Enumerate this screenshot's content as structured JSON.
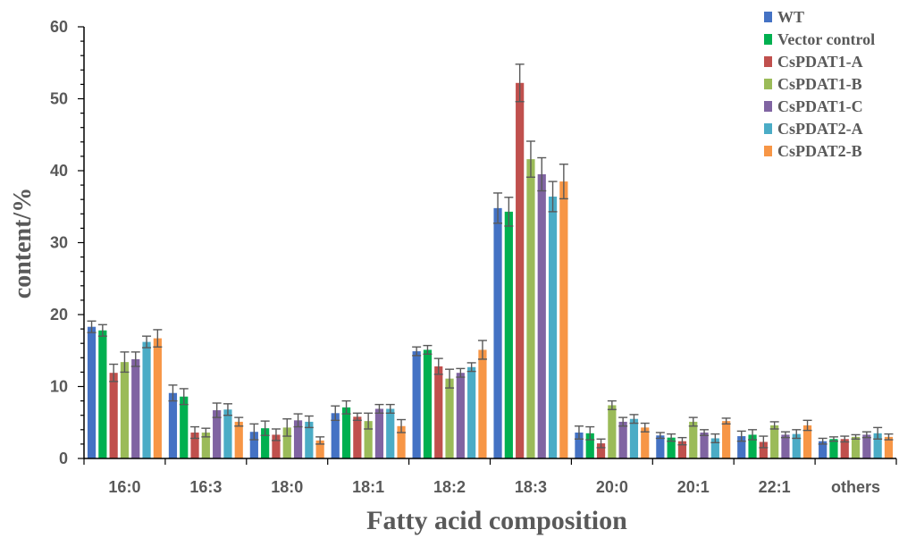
{
  "chart_data": {
    "type": "bar",
    "categories": [
      "16:0",
      "16:3",
      "18:0",
      "18:1",
      "18:2",
      "18:3",
      "20:0",
      "20:1",
      "22:1",
      "others"
    ],
    "xlabel": "Fatty acid composition",
    "ylabel": "content/%",
    "ylim": [
      0,
      60
    ],
    "yticks": [
      0,
      10,
      20,
      30,
      40,
      50,
      60
    ],
    "grid": false,
    "legend_position": "top-right",
    "error_bars": true,
    "series": [
      {
        "name": "WT",
        "color": "#4472C4",
        "values": [
          18.3,
          9.1,
          3.7,
          6.3,
          14.9,
          34.8,
          3.6,
          3.2,
          3.1,
          2.4
        ],
        "errors": [
          0.8,
          1.1,
          1.1,
          1.0,
          0.6,
          2.1,
          0.9,
          0.4,
          0.7,
          0.4
        ]
      },
      {
        "name": "Vector control",
        "color": "#00B050",
        "values": [
          17.8,
          8.6,
          4.2,
          7.1,
          15.1,
          34.3,
          3.5,
          2.9,
          3.3,
          2.7
        ],
        "errors": [
          0.8,
          1.1,
          1.0,
          0.9,
          0.6,
          2.0,
          0.9,
          0.5,
          0.7,
          0.3
        ]
      },
      {
        "name": "CsPDAT1-A",
        "color": "#C0504D",
        "values": [
          11.9,
          3.6,
          3.3,
          5.8,
          12.8,
          52.2,
          2.1,
          2.4,
          2.3,
          2.7
        ],
        "errors": [
          1.2,
          0.8,
          0.8,
          0.5,
          1.1,
          2.6,
          0.6,
          0.5,
          0.8,
          0.4
        ]
      },
      {
        "name": "CsPDAT1-B",
        "color": "#9BBB59",
        "values": [
          13.4,
          3.6,
          4.3,
          5.2,
          11.1,
          41.6,
          7.4,
          5.1,
          4.6,
          3.0
        ],
        "errors": [
          1.4,
          0.6,
          1.2,
          1.1,
          1.3,
          2.5,
          0.6,
          0.6,
          0.5,
          0.3
        ]
      },
      {
        "name": "CsPDAT1-C",
        "color": "#8064A2",
        "values": [
          13.8,
          6.7,
          5.3,
          6.9,
          11.9,
          39.5,
          5.1,
          3.6,
          3.3,
          3.3
        ],
        "errors": [
          1.0,
          1.0,
          0.9,
          0.6,
          0.6,
          2.3,
          0.6,
          0.4,
          0.4,
          0.4
        ]
      },
      {
        "name": "CsPDAT2-A",
        "color": "#4BACC6",
        "values": [
          16.2,
          6.8,
          5.1,
          6.9,
          12.7,
          36.4,
          5.5,
          2.8,
          3.4,
          3.5
        ],
        "errors": [
          0.8,
          0.8,
          0.8,
          0.6,
          0.6,
          2.1,
          0.6,
          0.6,
          0.6,
          0.8
        ]
      },
      {
        "name": "CsPDAT2-B",
        "color": "#F79646",
        "values": [
          16.7,
          5.1,
          2.5,
          4.5,
          15.1,
          38.5,
          4.3,
          5.2,
          4.6,
          3.0
        ],
        "errors": [
          1.2,
          0.6,
          0.5,
          0.9,
          1.3,
          2.4,
          0.6,
          0.4,
          0.7,
          0.4
        ]
      }
    ]
  }
}
